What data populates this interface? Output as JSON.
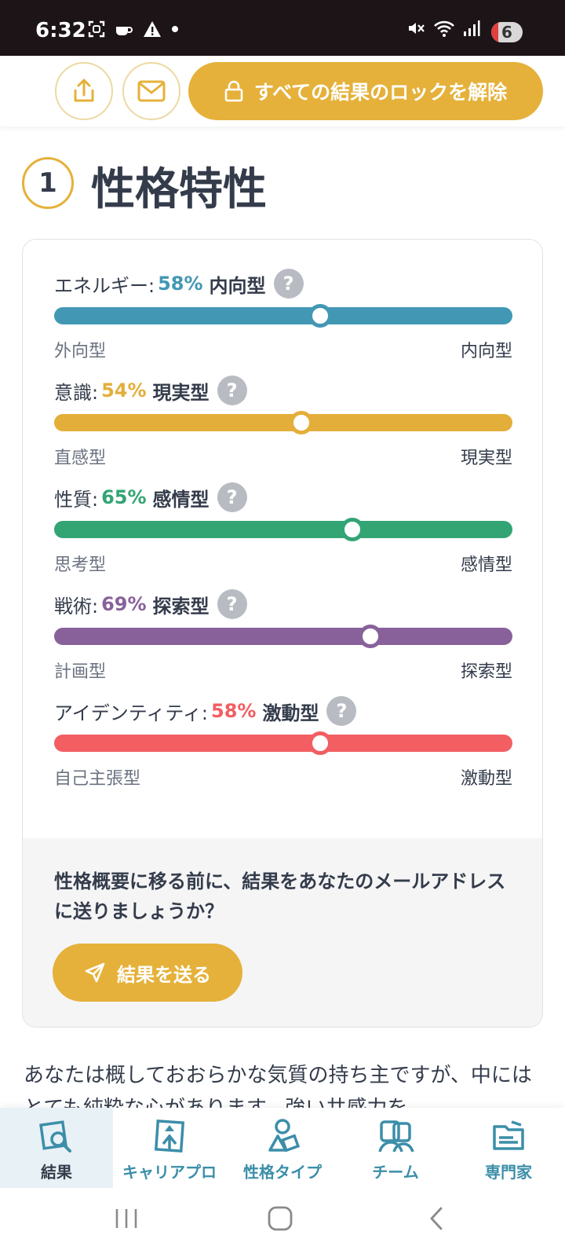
{
  "status_bar": {
    "time": "6:32",
    "battery": "6"
  },
  "top_bar": {
    "unlock_label": "すべての結果のロックを解除"
  },
  "section": {
    "number": "1",
    "title": "性格特性"
  },
  "traits": [
    {
      "name": "エネルギー:",
      "percent": "58%",
      "value": 0.58,
      "side": "内向型",
      "left": "外向型",
      "right": "内向型",
      "color": "#4298b4"
    },
    {
      "name": "意識:",
      "percent": "54%",
      "value": 0.54,
      "side": "現実型",
      "left": "直感型",
      "right": "現実型",
      "color": "#e4ae3a"
    },
    {
      "name": "性質:",
      "percent": "65%",
      "value": 0.65,
      "side": "感情型",
      "left": "思考型",
      "right": "感情型",
      "color": "#33a474"
    },
    {
      "name": "戦術:",
      "percent": "69%",
      "value": 0.69,
      "side": "探索型",
      "left": "計画型",
      "right": "探索型",
      "color": "#88619a"
    },
    {
      "name": "アイデンティティ:",
      "percent": "58%",
      "value": 0.58,
      "side": "激動型",
      "left": "自己主張型",
      "right": "激動型",
      "color": "#f25e62"
    }
  ],
  "help_mark": "?",
  "email_prompt": {
    "text": "性格概要に移る前に、結果をあなたのメールアドレスに送りましょうか？",
    "button": "結果を送る"
  },
  "body_text": "あなたは概しておおらかな気質の持ち主ですが、中にはとても純粋な心があります。強い共感力を",
  "bottom_nav": [
    {
      "label": "結果",
      "icon": "results-icon"
    },
    {
      "label": "キャリアプロ",
      "icon": "career-icon"
    },
    {
      "label": "性格タイプ",
      "icon": "personality-types-icon"
    },
    {
      "label": "チーム",
      "icon": "team-icon"
    },
    {
      "label": "専門家",
      "icon": "experts-icon"
    }
  ]
}
